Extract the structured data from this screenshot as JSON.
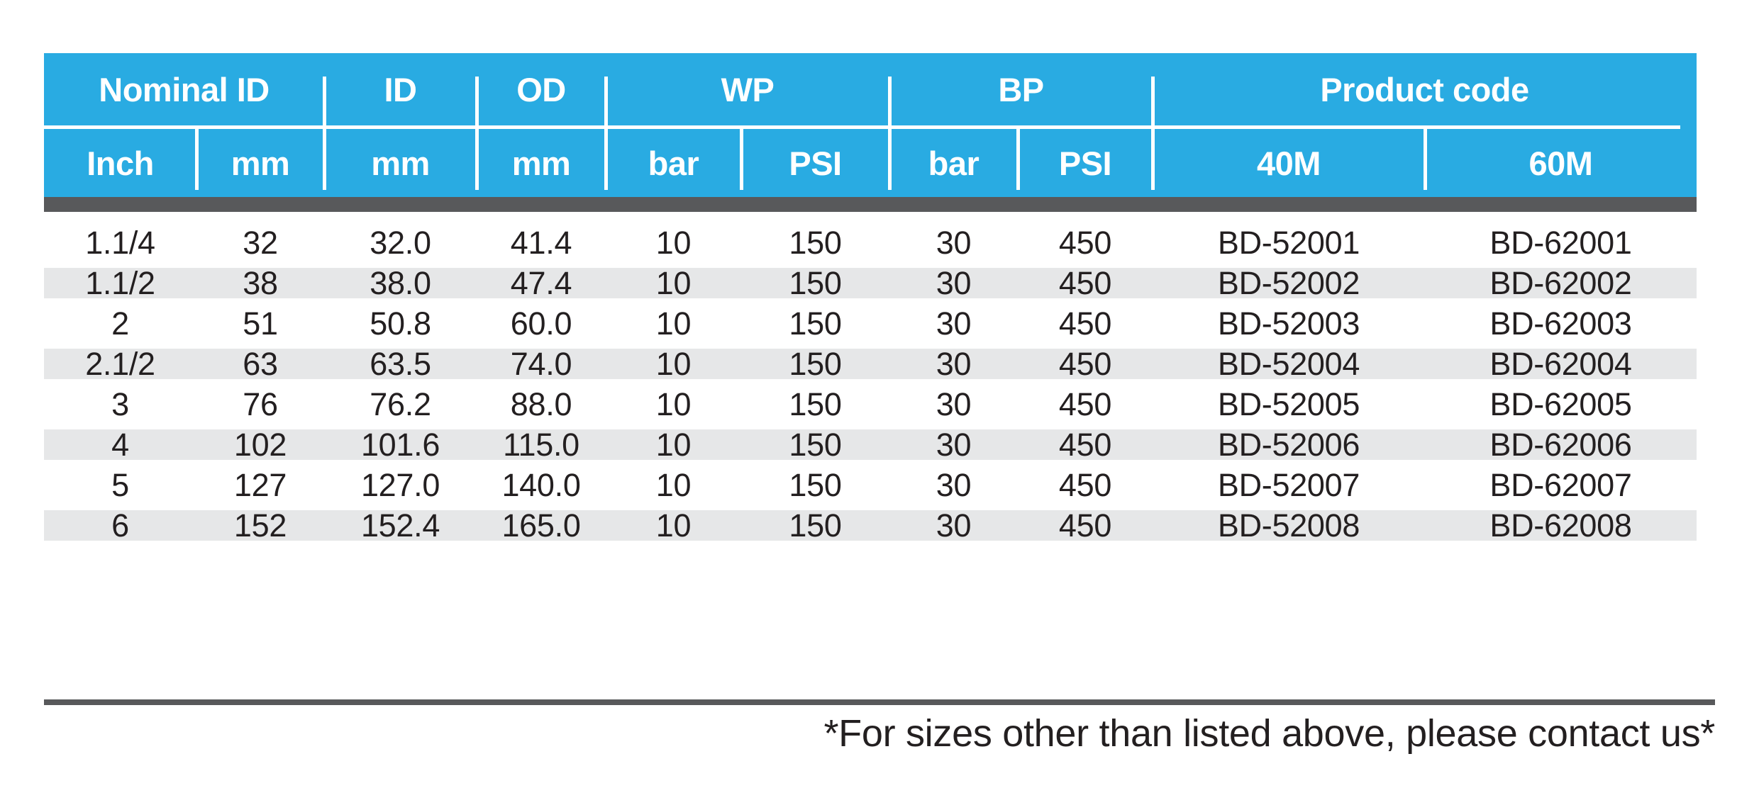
{
  "table": {
    "header": {
      "groups": [
        "Nominal ID",
        "ID",
        "OD",
        "WP",
        "BP",
        "Product code"
      ],
      "sub": [
        "Inch",
        "mm",
        "mm",
        "mm",
        "bar",
        "PSI",
        "bar",
        "PSI",
        "40M",
        "60M"
      ]
    },
    "rows": [
      [
        "1.1/4",
        "32",
        "32.0",
        "41.4",
        "10",
        "150",
        "30",
        "450",
        "BD-52001",
        "BD-62001"
      ],
      [
        "1.1/2",
        "38",
        "38.0",
        "47.4",
        "10",
        "150",
        "30",
        "450",
        "BD-52002",
        "BD-62002"
      ],
      [
        "2",
        "51",
        "50.8",
        "60.0",
        "10",
        "150",
        "30",
        "450",
        "BD-52003",
        "BD-62003"
      ],
      [
        "2.1/2",
        "63",
        "63.5",
        "74.0",
        "10",
        "150",
        "30",
        "450",
        "BD-52004",
        "BD-62004"
      ],
      [
        "3",
        "76",
        "76.2",
        "88.0",
        "10",
        "150",
        "30",
        "450",
        "BD-52005",
        "BD-62005"
      ],
      [
        "4",
        "102",
        "101.6",
        "115.0",
        "10",
        "150",
        "30",
        "450",
        "BD-52006",
        "BD-62006"
      ],
      [
        "5",
        "127",
        "127.0",
        "140.0",
        "10",
        "150",
        "30",
        "450",
        "BD-52007",
        "BD-62007"
      ],
      [
        "6",
        "152",
        "152.4",
        "165.0",
        "10",
        "150",
        "30",
        "450",
        "BD-52008",
        "BD-62008"
      ]
    ],
    "colors": {
      "header_bg": "#29ABE2",
      "header_text": "#FFFFFF",
      "bar": "#58595B",
      "stripe": "#E6E7E8",
      "text": "#231F20",
      "page_bg": "#FFFFFF"
    }
  },
  "footnote": "*For sizes other than listed above, please contact us*"
}
